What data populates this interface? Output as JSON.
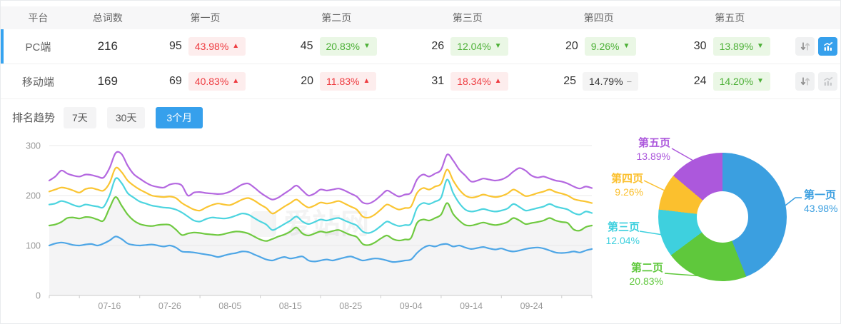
{
  "table": {
    "headers": {
      "platform": "平台",
      "total": "总词数",
      "pages": [
        "第一页",
        "第二页",
        "第三页",
        "第四页",
        "第五页"
      ]
    },
    "rows": [
      {
        "platform": "PC端",
        "total": "216",
        "active": true,
        "pages": [
          {
            "count": "95",
            "percent": "43.98%",
            "trend": "up"
          },
          {
            "count": "45",
            "percent": "20.83%",
            "trend": "down"
          },
          {
            "count": "26",
            "percent": "12.04%",
            "trend": "down"
          },
          {
            "count": "20",
            "percent": "9.26%",
            "trend": "down"
          },
          {
            "count": "30",
            "percent": "13.89%",
            "trend": "down"
          }
        ]
      },
      {
        "platform": "移动端",
        "total": "169",
        "active": false,
        "pages": [
          {
            "count": "69",
            "percent": "40.83%",
            "trend": "up"
          },
          {
            "count": "20",
            "percent": "11.83%",
            "trend": "up"
          },
          {
            "count": "31",
            "percent": "18.34%",
            "trend": "up"
          },
          {
            "count": "25",
            "percent": "14.79%",
            "trend": "flat"
          },
          {
            "count": "24",
            "percent": "14.20%",
            "trend": "down"
          }
        ]
      }
    ]
  },
  "trend": {
    "title": "排名趋势",
    "tabs": [
      {
        "label": "7天",
        "active": false
      },
      {
        "label": "30天",
        "active": false
      },
      {
        "label": "3个月",
        "active": true
      }
    ]
  },
  "watermark": "爱站网",
  "colors": {
    "accent_blue": "#36a0ec",
    "badge_red": "#ee3b40",
    "badge_green": "#4cb036"
  },
  "chart_data": [
    {
      "type": "line",
      "title": "排名趋势 (3个月, 每日, 堆叠累计排名词数)",
      "x_tick_labels": [
        "07-16",
        "07-26",
        "08-05",
        "08-15",
        "08-25",
        "09-04",
        "09-14",
        "09-24"
      ],
      "x_tick_indices": [
        10,
        20,
        30,
        40,
        50,
        60,
        70,
        80
      ],
      "points_per_series": 91,
      "y_ticks": [
        0,
        100,
        200,
        300
      ],
      "ylim": [
        0,
        300
      ],
      "grid": true,
      "legend": false,
      "area_under_series": "第二页",
      "series": [
        {
          "name": "第一页",
          "color": "#4ea6e6",
          "values": [
            100,
            104,
            106,
            104,
            101,
            100,
            102,
            103,
            100,
            104,
            110,
            118,
            113,
            104,
            101,
            100,
            101,
            102,
            100,
            98,
            100,
            96,
            88,
            87,
            86,
            84,
            82,
            80,
            77,
            80,
            83,
            85,
            88,
            87,
            82,
            77,
            72,
            70,
            74,
            77,
            74,
            76,
            78,
            70,
            68,
            70,
            72,
            70,
            73,
            76,
            78,
            74,
            70,
            72,
            74,
            73,
            70,
            67,
            68,
            70,
            72,
            85,
            95,
            100,
            98,
            102,
            103,
            98,
            100,
            96,
            93,
            95,
            97,
            94,
            92,
            94,
            90,
            88,
            90,
            93,
            95,
            96,
            94,
            90,
            86,
            85,
            86,
            88,
            86,
            90,
            93
          ]
        },
        {
          "name": "第二页",
          "color": "#6fc940",
          "values": [
            140,
            142,
            147,
            155,
            156,
            154,
            157,
            156,
            152,
            150,
            175,
            197,
            180,
            162,
            150,
            143,
            140,
            139,
            141,
            142,
            141,
            132,
            121,
            124,
            126,
            125,
            123,
            122,
            121,
            123,
            126,
            128,
            127,
            124,
            118,
            112,
            109,
            113,
            118,
            122,
            128,
            136,
            124,
            120,
            124,
            128,
            126,
            129,
            131,
            126,
            121,
            117,
            103,
            101,
            106,
            114,
            120,
            113,
            110,
            112,
            115,
            145,
            152,
            150,
            155,
            162,
            185,
            163,
            150,
            141,
            140,
            143,
            146,
            143,
            141,
            143,
            147,
            155,
            150,
            143,
            145,
            147,
            150,
            155,
            150,
            147,
            145,
            132,
            130,
            137,
            140
          ]
        },
        {
          "name": "第三页",
          "color": "#4cd4df",
          "values": [
            182,
            184,
            189,
            186,
            181,
            178,
            182,
            180,
            178,
            177,
            200,
            234,
            225,
            205,
            196,
            188,
            184,
            180,
            178,
            176,
            175,
            172,
            166,
            158,
            150,
            148,
            153,
            156,
            155,
            154,
            156,
            160,
            164,
            162,
            155,
            148,
            142,
            131,
            136,
            143,
            150,
            158,
            148,
            143,
            147,
            152,
            150,
            153,
            155,
            150,
            145,
            140,
            128,
            125,
            130,
            139,
            148,
            143,
            139,
            141,
            144,
            175,
            185,
            183,
            188,
            196,
            232,
            205,
            185,
            172,
            168,
            170,
            173,
            170,
            168,
            170,
            174,
            183,
            177,
            170,
            172,
            175,
            178,
            183,
            178,
            175,
            172,
            165,
            162,
            168,
            165
          ]
        },
        {
          "name": "第四页",
          "color": "#fac532",
          "values": [
            208,
            212,
            216,
            214,
            210,
            206,
            213,
            215,
            212,
            210,
            225,
            255,
            247,
            230,
            220,
            212,
            206,
            200,
            198,
            197,
            198,
            195,
            185,
            178,
            172,
            170,
            176,
            181,
            184,
            182,
            181,
            186,
            192,
            195,
            190,
            182,
            175,
            164,
            170,
            178,
            185,
            192,
            183,
            176,
            180,
            186,
            184,
            186,
            189,
            184,
            178,
            172,
            158,
            156,
            162,
            172,
            182,
            177,
            172,
            175,
            178,
            205,
            215,
            212,
            218,
            224,
            252,
            230,
            212,
            200,
            196,
            198,
            202,
            199,
            197,
            199,
            204,
            212,
            206,
            199,
            201,
            205,
            208,
            212,
            207,
            204,
            200,
            193,
            190,
            188,
            185
          ]
        },
        {
          "name": "第五页",
          "color": "#b468e0",
          "values": [
            230,
            238,
            250,
            244,
            240,
            238,
            242,
            241,
            238,
            236,
            255,
            285,
            283,
            260,
            243,
            234,
            226,
            220,
            217,
            216,
            222,
            224,
            220,
            200,
            206,
            207,
            205,
            204,
            203,
            204,
            208,
            215,
            222,
            224,
            216,
            206,
            198,
            192,
            196,
            204,
            212,
            220,
            210,
            200,
            204,
            212,
            210,
            212,
            214,
            210,
            204,
            198,
            186,
            184,
            190,
            200,
            210,
            204,
            198,
            202,
            206,
            232,
            242,
            238,
            244,
            252,
            282,
            270,
            252,
            240,
            228,
            230,
            234,
            232,
            230,
            232,
            238,
            248,
            255,
            250,
            240,
            236,
            238,
            234,
            230,
            228,
            224,
            218,
            214,
            218,
            215
          ]
        }
      ]
    },
    {
      "type": "donut",
      "items": [
        {
          "label": "第一页",
          "value": 43.98,
          "display": "43.98%",
          "color": "#3b9fe0"
        },
        {
          "label": "第二页",
          "value": 20.83,
          "display": "20.83%",
          "color": "#5fc83c"
        },
        {
          "label": "第三页",
          "value": 12.04,
          "display": "12.04%",
          "color": "#3ed0de"
        },
        {
          "label": "第四页",
          "value": 9.26,
          "display": "9.26%",
          "color": "#fbc02e"
        },
        {
          "label": "第五页",
          "value": 13.89,
          "display": "13.89%",
          "color": "#ac58dc"
        }
      ]
    }
  ]
}
